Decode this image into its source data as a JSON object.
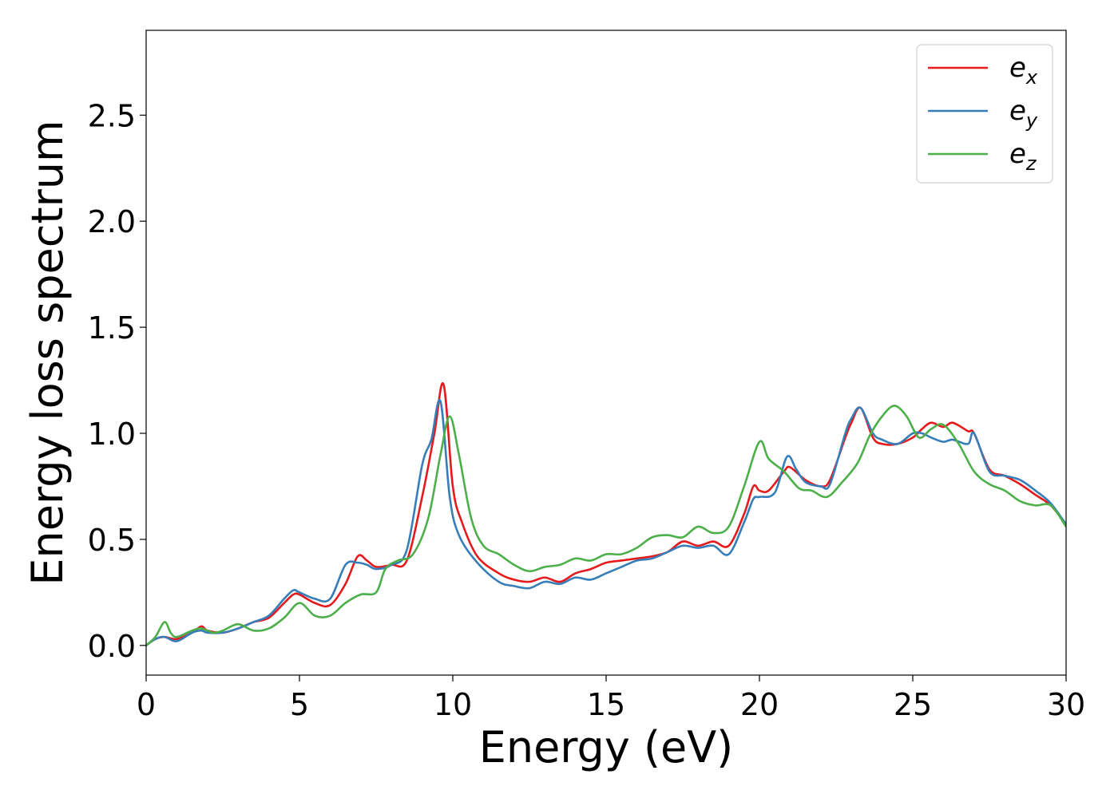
{
  "chart_data": {
    "type": "line",
    "title": "",
    "xlabel": "Energy (eV)",
    "ylabel": "Energy loss spectrum",
    "xlim": [
      0,
      30
    ],
    "ylim": [
      -0.14,
      2.9
    ],
    "x_ticks": [
      0,
      5,
      10,
      15,
      20,
      25,
      30
    ],
    "y_ticks": [
      0.0,
      0.5,
      1.0,
      1.5,
      2.0,
      2.5
    ],
    "x_tick_labels": [
      "0",
      "5",
      "10",
      "15",
      "20",
      "25",
      "30"
    ],
    "y_tick_labels": [
      "0.0",
      "0.5",
      "1.0",
      "1.5",
      "2.0",
      "2.5"
    ],
    "grid": false,
    "legend_position": "top-right",
    "series": [
      {
        "name": "e_x",
        "label_base": "e",
        "label_sub": "x",
        "color": "#e41a1c",
        "x": [
          0,
          0.3,
          0.6,
          1.0,
          1.5,
          1.8,
          2.0,
          2.5,
          3.0,
          3.5,
          4.0,
          4.5,
          4.8,
          5.0,
          5.5,
          6.0,
          6.5,
          6.9,
          7.2,
          7.5,
          8.0,
          8.5,
          9.0,
          9.4,
          9.7,
          10.0,
          10.3,
          10.8,
          11.5,
          12.0,
          12.5,
          13.0,
          13.5,
          14.0,
          14.5,
          15.0,
          15.5,
          16.0,
          16.5,
          17.0,
          17.5,
          18.0,
          18.5,
          19.0,
          19.5,
          19.8,
          20.0,
          20.3,
          20.8,
          21.0,
          21.5,
          22.0,
          22.3,
          22.8,
          23.0,
          23.3,
          23.7,
          24.0,
          24.5,
          25.0,
          25.3,
          25.6,
          26.0,
          26.3,
          26.8,
          27.0,
          27.5,
          28.0,
          28.5,
          29.0,
          29.5,
          30.0
        ],
        "y": [
          0.0,
          0.03,
          0.04,
          0.03,
          0.06,
          0.09,
          0.07,
          0.06,
          0.08,
          0.11,
          0.13,
          0.2,
          0.24,
          0.24,
          0.2,
          0.19,
          0.29,
          0.42,
          0.4,
          0.37,
          0.38,
          0.4,
          0.7,
          1.0,
          1.23,
          0.75,
          0.58,
          0.42,
          0.34,
          0.31,
          0.3,
          0.32,
          0.3,
          0.34,
          0.36,
          0.39,
          0.4,
          0.41,
          0.42,
          0.44,
          0.49,
          0.47,
          0.49,
          0.47,
          0.62,
          0.75,
          0.73,
          0.73,
          0.82,
          0.84,
          0.78,
          0.75,
          0.78,
          0.98,
          1.05,
          1.12,
          0.98,
          0.95,
          0.95,
          0.98,
          1.02,
          1.05,
          1.03,
          1.05,
          1.01,
          1.0,
          0.83,
          0.8,
          0.76,
          0.71,
          0.66,
          0.57
        ]
      },
      {
        "name": "e_y",
        "label_base": "e",
        "label_sub": "y",
        "color": "#377eb8",
        "x": [
          0,
          0.3,
          0.6,
          1.0,
          1.5,
          1.8,
          2.0,
          2.5,
          3.0,
          3.5,
          4.0,
          4.5,
          4.8,
          5.0,
          5.5,
          6.0,
          6.5,
          6.9,
          7.2,
          7.5,
          8.0,
          8.5,
          9.0,
          9.3,
          9.6,
          9.9,
          10.2,
          10.8,
          11.5,
          12.0,
          12.5,
          13.0,
          13.5,
          14.0,
          14.5,
          15.0,
          15.5,
          16.0,
          16.5,
          17.0,
          17.5,
          18.0,
          18.5,
          19.0,
          19.5,
          19.8,
          20.0,
          20.5,
          20.9,
          21.2,
          21.5,
          22.0,
          22.3,
          22.8,
          23.0,
          23.3,
          23.7,
          24.0,
          24.5,
          25.0,
          25.3,
          25.6,
          26.0,
          26.3,
          26.8,
          27.0,
          27.5,
          28.0,
          28.5,
          29.0,
          29.5,
          30.0
        ],
        "y": [
          0.0,
          0.03,
          0.04,
          0.02,
          0.06,
          0.07,
          0.06,
          0.06,
          0.08,
          0.11,
          0.14,
          0.22,
          0.26,
          0.25,
          0.22,
          0.22,
          0.38,
          0.39,
          0.38,
          0.36,
          0.38,
          0.45,
          0.85,
          0.97,
          1.15,
          0.7,
          0.52,
          0.39,
          0.3,
          0.28,
          0.27,
          0.3,
          0.29,
          0.32,
          0.31,
          0.34,
          0.37,
          0.4,
          0.41,
          0.44,
          0.47,
          0.46,
          0.47,
          0.43,
          0.58,
          0.69,
          0.7,
          0.72,
          0.89,
          0.83,
          0.77,
          0.75,
          0.76,
          1.0,
          1.07,
          1.12,
          1.0,
          0.97,
          0.95,
          1.0,
          1.0,
          0.98,
          0.96,
          0.97,
          0.95,
          1.0,
          0.82,
          0.8,
          0.78,
          0.73,
          0.67,
          0.57
        ]
      },
      {
        "name": "e_z",
        "label_base": "e",
        "label_sub": "z",
        "color": "#4daf4a",
        "x": [
          0,
          0.3,
          0.6,
          0.8,
          1.0,
          1.5,
          1.8,
          2.2,
          2.5,
          3.0,
          3.5,
          4.0,
          4.5,
          5.0,
          5.5,
          6.0,
          6.5,
          7.0,
          7.5,
          7.8,
          8.2,
          8.7,
          9.2,
          9.6,
          9.9,
          10.2,
          10.6,
          11.0,
          11.5,
          12.0,
          12.5,
          13.0,
          13.5,
          14.0,
          14.5,
          15.0,
          15.5,
          16.0,
          16.5,
          17.0,
          17.5,
          18.0,
          18.5,
          19.0,
          19.5,
          20.0,
          20.3,
          20.8,
          21.3,
          21.7,
          22.2,
          22.7,
          23.2,
          23.6,
          24.0,
          24.4,
          24.8,
          25.2,
          25.6,
          26.0,
          26.5,
          27.0,
          27.5,
          28.0,
          28.5,
          29.0,
          29.5,
          30.0
        ],
        "y": [
          0.0,
          0.04,
          0.11,
          0.06,
          0.04,
          0.07,
          0.08,
          0.06,
          0.07,
          0.1,
          0.07,
          0.08,
          0.13,
          0.2,
          0.14,
          0.14,
          0.2,
          0.24,
          0.25,
          0.36,
          0.4,
          0.43,
          0.6,
          0.9,
          1.08,
          0.9,
          0.6,
          0.47,
          0.43,
          0.38,
          0.35,
          0.37,
          0.38,
          0.41,
          0.4,
          0.43,
          0.43,
          0.46,
          0.51,
          0.52,
          0.51,
          0.56,
          0.53,
          0.56,
          0.75,
          0.96,
          0.88,
          0.82,
          0.74,
          0.73,
          0.7,
          0.77,
          0.86,
          0.99,
          1.08,
          1.13,
          1.08,
          0.98,
          1.02,
          1.04,
          0.95,
          0.82,
          0.76,
          0.73,
          0.68,
          0.66,
          0.66,
          0.56
        ]
      }
    ]
  }
}
